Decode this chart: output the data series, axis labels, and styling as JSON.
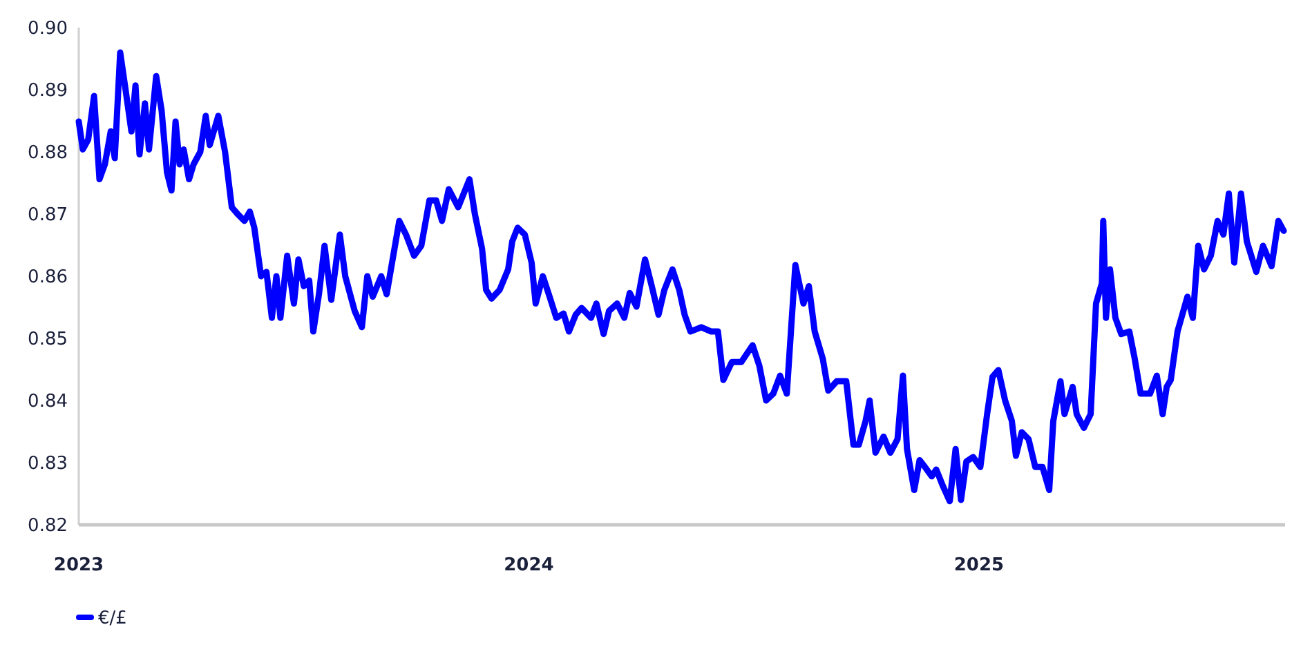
{
  "chart_data": {
    "type": "line",
    "xlim": [
      2023,
      2025.68
    ],
    "xticks": [
      2023,
      2024,
      2025
    ],
    "ylim": [
      0.82,
      0.9
    ],
    "yticks": [
      0.82,
      0.83,
      0.84,
      0.85,
      0.86,
      0.87,
      0.88,
      0.89,
      {
        "value": 0.9,
        "label": "0.90"
      }
    ],
    "grid": false,
    "legend": "bottom left",
    "line_style": "solid",
    "marker": "none",
    "x": [
      2023.0,
      2023.009,
      2023.021,
      2023.034,
      2023.046,
      2023.058,
      2023.071,
      2023.08,
      2023.092,
      2023.104,
      2023.117,
      2023.126,
      2023.135,
      2023.147,
      2023.156,
      2023.172,
      2023.184,
      2023.196,
      2023.206,
      2023.215,
      2023.224,
      2023.233,
      2023.245,
      2023.255,
      2023.27,
      2023.282,
      2023.291,
      2023.31,
      2023.325,
      2023.34,
      2023.353,
      2023.368,
      2023.38,
      2023.39,
      2023.405,
      2023.417,
      2023.429,
      2023.439,
      2023.448,
      2023.463,
      2023.478,
      2023.488,
      2023.5,
      2023.512,
      2023.521,
      2023.534,
      2023.546,
      2023.561,
      2023.58,
      2023.592,
      2023.613,
      2023.629,
      2023.641,
      2023.653,
      2023.672,
      2023.684,
      2023.712,
      2023.727,
      2023.745,
      2023.761,
      2023.779,
      2023.794,
      2023.807,
      2023.822,
      2023.843,
      2023.868,
      2023.88,
      2023.896,
      2023.905,
      2023.917,
      2023.935,
      2023.954,
      2023.963,
      2023.975,
      2023.991,
      2024.006,
      2024.015,
      2024.031,
      2024.046,
      2024.061,
      2024.077,
      2024.089,
      2024.104,
      2024.117,
      2024.138,
      2024.15,
      2024.166,
      2024.178,
      2024.196,
      2024.212,
      2024.224,
      2024.239,
      2024.258,
      2024.273,
      2024.288,
      2024.301,
      2024.319,
      2024.334,
      2024.346,
      2024.359,
      2024.383,
      2024.405,
      2024.42,
      2024.432,
      2024.451,
      2024.472,
      2024.497,
      2024.512,
      2024.527,
      2024.543,
      2024.558,
      2024.573,
      2024.592,
      2024.61,
      2024.622,
      2024.635,
      2024.653,
      2024.665,
      2024.684,
      2024.705,
      2024.721,
      2024.733,
      2024.748,
      2024.757,
      2024.77,
      2024.788,
      2024.803,
      2024.819,
      2024.831,
      2024.84,
      2024.856,
      2024.868,
      2024.88,
      2024.895,
      2024.905,
      2024.92,
      2024.935,
      2024.948,
      2024.96,
      2024.972,
      2024.987,
      2025.003,
      2025.018,
      2025.03,
      2025.043,
      2025.058,
      2025.073,
      2025.082,
      2025.095,
      2025.11,
      2025.125,
      2025.141,
      2025.156,
      2025.165,
      2025.181,
      2025.19,
      2025.208,
      2025.217,
      2025.233,
      2025.248,
      2025.26,
      2025.273,
      2025.276,
      2025.282,
      2025.291,
      2025.303,
      2025.316,
      2025.334,
      2025.346,
      2025.359,
      2025.38,
      2025.395,
      2025.408,
      2025.417,
      2025.426,
      2025.441,
      2025.463,
      2025.475,
      2025.487,
      2025.5,
      2025.515,
      2025.53,
      2025.543,
      2025.555,
      2025.567,
      2025.582,
      2025.595,
      2025.616,
      2025.631,
      2025.65,
      2025.665,
      2025.677
    ],
    "series": [
      {
        "name": "€/£",
        "color": "#0000ff",
        "values": [
          0.8849,
          0.8804,
          0.882,
          0.889,
          0.8756,
          0.878,
          0.8833,
          0.879,
          0.896,
          0.89,
          0.8833,
          0.8907,
          0.8796,
          0.8878,
          0.8804,
          0.8922,
          0.8867,
          0.8767,
          0.8738,
          0.8849,
          0.878,
          0.8804,
          0.8756,
          0.878,
          0.88,
          0.8858,
          0.8811,
          0.8858,
          0.88,
          0.8711,
          0.87,
          0.8689,
          0.8704,
          0.8678,
          0.86,
          0.8607,
          0.8533,
          0.86,
          0.8533,
          0.8633,
          0.8556,
          0.8627,
          0.8584,
          0.8593,
          0.8511,
          0.8573,
          0.8649,
          0.8562,
          0.8667,
          0.86,
          0.8544,
          0.8518,
          0.86,
          0.8567,
          0.86,
          0.8571,
          0.8689,
          0.8667,
          0.8633,
          0.8649,
          0.8722,
          0.8722,
          0.8689,
          0.874,
          0.8711,
          0.8756,
          0.87,
          0.8644,
          0.8578,
          0.8564,
          0.8578,
          0.8611,
          0.8656,
          0.8678,
          0.8667,
          0.8622,
          0.8556,
          0.86,
          0.8567,
          0.8533,
          0.854,
          0.8511,
          0.8538,
          0.8549,
          0.8533,
          0.8556,
          0.8507,
          0.8544,
          0.8556,
          0.8533,
          0.8573,
          0.8551,
          0.8627,
          0.8584,
          0.8538,
          0.8578,
          0.8611,
          0.8578,
          0.8538,
          0.8511,
          0.8518,
          0.8511,
          0.8511,
          0.8433,
          0.8462,
          0.8462,
          0.8489,
          0.8456,
          0.84,
          0.8411,
          0.844,
          0.8411,
          0.8618,
          0.8556,
          0.8584,
          0.8511,
          0.8467,
          0.8416,
          0.8431,
          0.8431,
          0.8329,
          0.8329,
          0.8367,
          0.84,
          0.8316,
          0.8342,
          0.8316,
          0.8338,
          0.844,
          0.8322,
          0.8256,
          0.8304,
          0.8293,
          0.8278,
          0.8289,
          0.8262,
          0.8238,
          0.8322,
          0.824,
          0.8302,
          0.8309,
          0.8293,
          0.8378,
          0.8438,
          0.8449,
          0.84,
          0.8367,
          0.8311,
          0.8349,
          0.8338,
          0.8293,
          0.8293,
          0.8256,
          0.8367,
          0.8431,
          0.8378,
          0.8422,
          0.8378,
          0.8356,
          0.8378,
          0.8556,
          0.8589,
          0.8689,
          0.8533,
          0.8611,
          0.8533,
          0.8507,
          0.8511,
          0.8467,
          0.8411,
          0.8411,
          0.844,
          0.8378,
          0.8422,
          0.8433,
          0.8511,
          0.8567,
          0.8533,
          0.8649,
          0.8611,
          0.8633,
          0.8689,
          0.8667,
          0.8733,
          0.8622,
          0.8733,
          0.8656,
          0.8607,
          0.8649,
          0.8616,
          0.8689,
          0.8673
        ]
      }
    ]
  }
}
